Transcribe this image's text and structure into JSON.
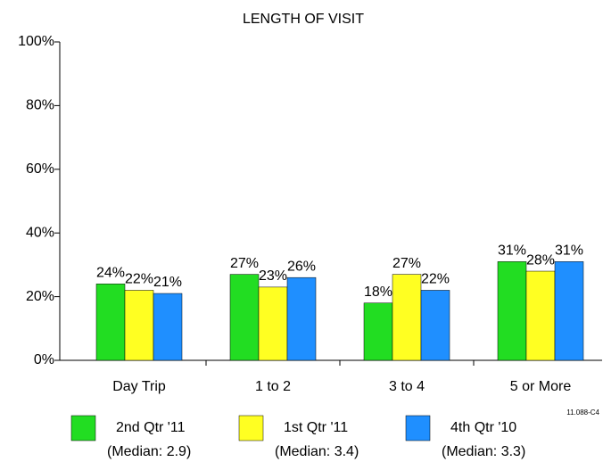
{
  "chart_data": {
    "type": "bar",
    "title": "LENGTH OF VISIT",
    "categories": [
      "Day Trip",
      "1 to 2",
      "3 to 4",
      "5 or More"
    ],
    "series": [
      {
        "name": "2nd Qtr '11",
        "note": "(Median: 2.9)",
        "color": "#22dd22",
        "values": [
          24,
          27,
          18,
          31
        ],
        "value_labels": [
          "24%",
          "27%",
          "18%",
          "31%"
        ]
      },
      {
        "name": "1st Qtr '11",
        "note": "(Median: 3.4)",
        "color": "#ffff22",
        "values": [
          22,
          23,
          27,
          28
        ],
        "value_labels": [
          "22%",
          "23%",
          "27%",
          "28%"
        ]
      },
      {
        "name": "4th Qtr '10",
        "note": "(Median: 3.3)",
        "color": "#1f8fff",
        "values": [
          21,
          26,
          22,
          31
        ],
        "value_labels": [
          "21%",
          "26%",
          "22%",
          "31%"
        ]
      }
    ],
    "ylim": [
      0,
      100
    ],
    "yticks": [
      {
        "value": 0,
        "label": "0%"
      },
      {
        "value": 20,
        "label": "20%"
      },
      {
        "value": 40,
        "label": "40%"
      },
      {
        "value": 60,
        "label": "60%"
      },
      {
        "value": 80,
        "label": "80%"
      },
      {
        "value": 100,
        "label": "100%"
      }
    ],
    "annotation": "11.088-C4",
    "grid": false
  }
}
